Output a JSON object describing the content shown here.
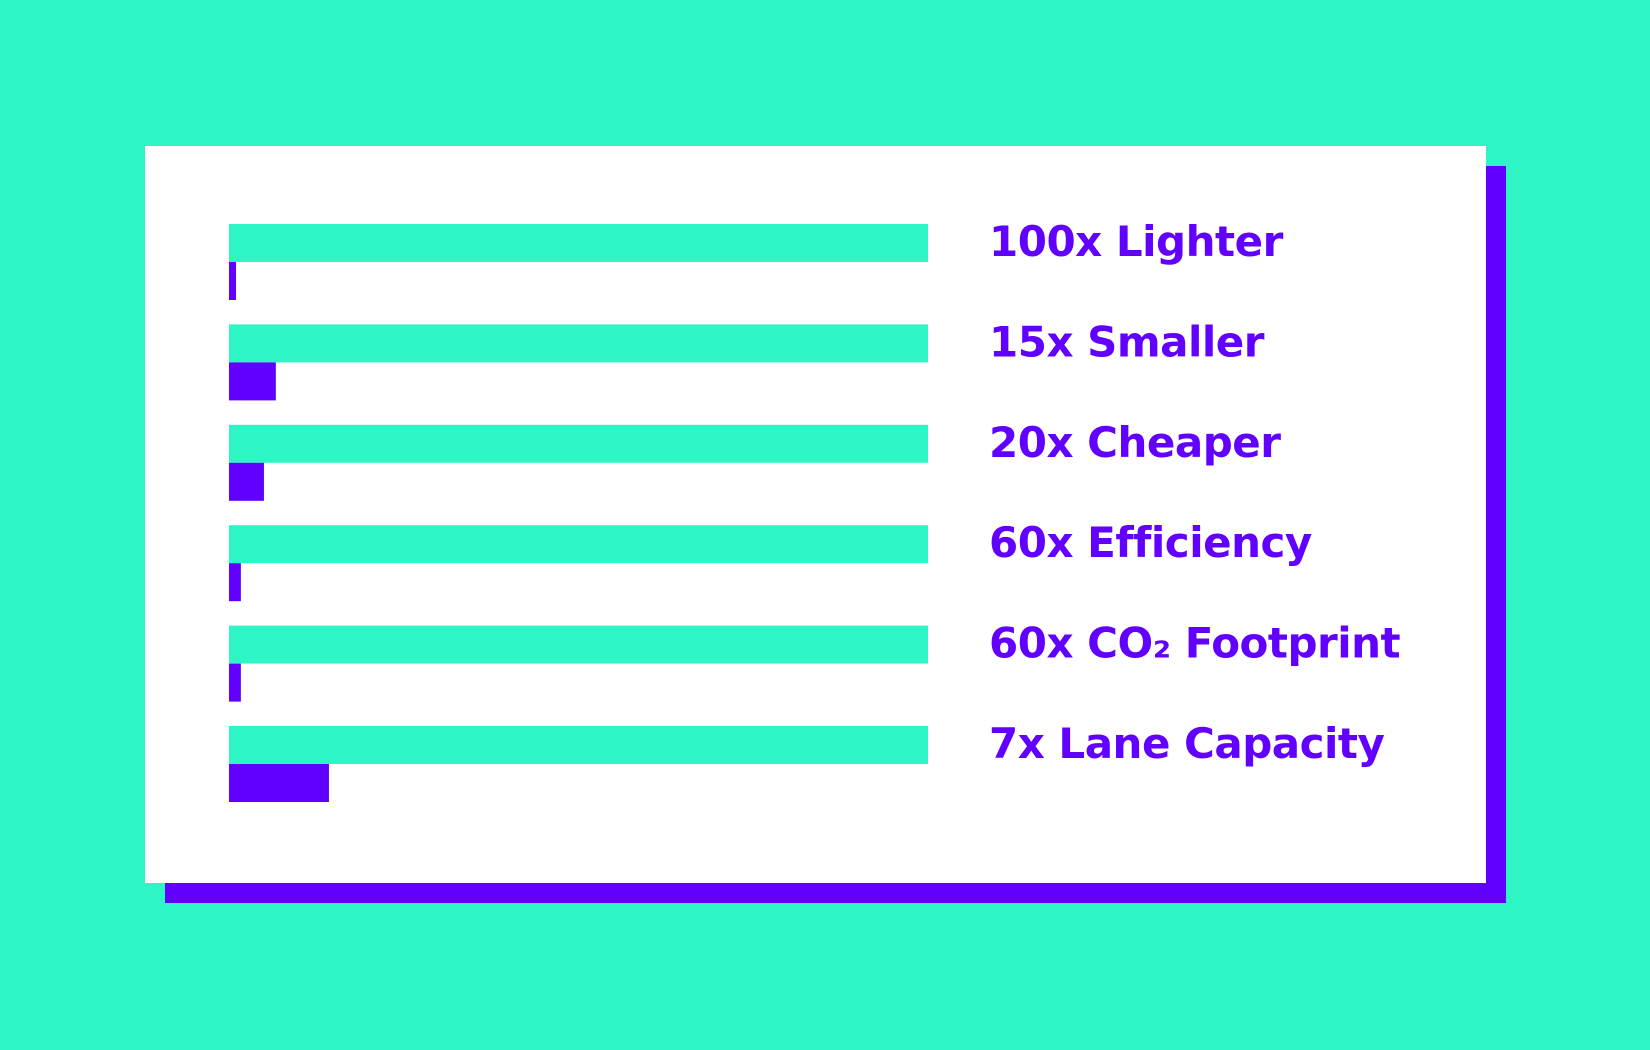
{
  "colors": {
    "background": "#2ef5c5",
    "card": "#ffffff",
    "shadow": "#6200ff",
    "baseline_bar": "#2ef5c5",
    "comparison_bar": "#6200ff",
    "label": "#6200ff"
  },
  "chart_data": {
    "type": "bar",
    "orientation": "horizontal",
    "title": "",
    "xlabel": "",
    "ylabel": "",
    "grid": false,
    "legend": "none",
    "xlim": [
      0,
      100
    ],
    "categories": [
      "100x Lighter",
      "15x Smaller",
      "20x Cheaper",
      "60x Efficiency",
      "60x CO₂ Footprint",
      "7x Lane Capacity"
    ],
    "series": [
      {
        "color": "#2ef5c5",
        "values": [
          100,
          100,
          100,
          100,
          100,
          100
        ]
      },
      {
        "color": "#6200ff",
        "values": [
          1,
          6.7,
          5,
          1.7,
          1.7,
          14.3
        ]
      }
    ]
  }
}
